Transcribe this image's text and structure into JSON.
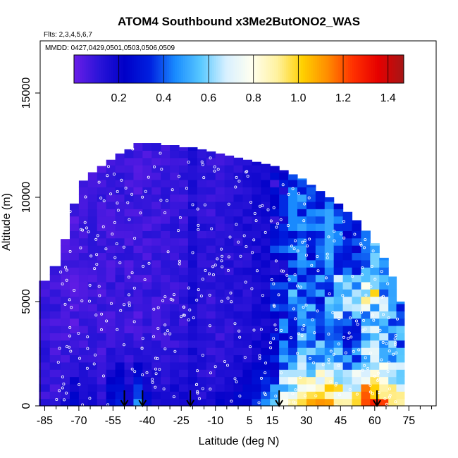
{
  "chart_data": {
    "type": "heatmap",
    "title": "ATOM4 Southbound x3Me2ButONO2_WAS",
    "subtitle_flights": "Flts: 2,3,4,5,6,7",
    "subtitle_dates": "MMDD: 0427,0429,0501,0503,0506,0509",
    "xlabel": "Latitude (deg N)",
    "ylabel": "Altitude (m)",
    "xlim": [
      -87,
      87
    ],
    "ylim": [
      0,
      17500
    ],
    "x_ticks": [
      -85,
      -70,
      -55,
      -40,
      -25,
      -10,
      5,
      15,
      30,
      45,
      60,
      75
    ],
    "x_tick_labels": [
      "-85",
      "-70",
      "-55",
      "-40",
      "-25",
      "-10",
      "5",
      "15",
      "30",
      "45",
      "60",
      "75"
    ],
    "y_ticks": [
      0,
      5000,
      10000,
      15000
    ],
    "y_tick_labels": [
      "0",
      "5000",
      "10000",
      "15000"
    ],
    "colorbar": {
      "range": [
        0.0,
        1.47
      ],
      "ticks": [
        0.2,
        0.4,
        0.6,
        0.8,
        1.0,
        1.2,
        1.4
      ],
      "tick_labels": [
        "0.2",
        "0.4",
        "0.6",
        "0.8",
        "1.0",
        "1.2",
        "1.4"
      ],
      "colors": [
        "#6a1ee8",
        "#2a14d8",
        "#0000c8",
        "#0020e0",
        "#1a8cff",
        "#58c8ff",
        "#d8f0ff",
        "#fffff0",
        "#fff2a0",
        "#ffd000",
        "#ff8c00",
        "#ff3000",
        "#e60000",
        "#a51616"
      ]
    },
    "sample_latitudes_arrows": [
      -50,
      -42,
      -21,
      18,
      61
    ],
    "surface_colors_note": "",
    "columns": [
      {
        "lat": -85.5,
        "top": 6000,
        "base": 0.1,
        "low": 0.1
      },
      {
        "lat": -80,
        "top": 6700,
        "base": 0.08,
        "low": 0.09
      },
      {
        "lat": -76,
        "top": 8000,
        "base": 0.07,
        "low": 0.15
      },
      {
        "lat": -72,
        "top": 9700,
        "base": 0.06,
        "low": 0.25
      },
      {
        "lat": -68,
        "top": 10800,
        "base": 0.07,
        "low": 0.2
      },
      {
        "lat": -64,
        "top": 11200,
        "base": 0.08,
        "low": 0.15
      },
      {
        "lat": -60,
        "top": 11500,
        "base": 0.08,
        "low": 0.12
      },
      {
        "lat": -56,
        "top": 11800,
        "base": 0.08,
        "low": 0.3
      },
      {
        "lat": -52,
        "top": 12100,
        "base": 0.09,
        "low": 0.35
      },
      {
        "lat": -48,
        "top": 12300,
        "base": 0.08,
        "low": 0.2
      },
      {
        "lat": -44,
        "top": 12600,
        "base": 0.07,
        "low": 0.45
      },
      {
        "lat": -40,
        "top": 12600,
        "base": 0.08,
        "low": 0.25
      },
      {
        "lat": -36,
        "top": 12600,
        "base": 0.09,
        "low": 0.18
      },
      {
        "lat": -32,
        "top": 12500,
        "base": 0.09,
        "low": 0.15
      },
      {
        "lat": -28,
        "top": 12500,
        "base": 0.1,
        "low": 0.18
      },
      {
        "lat": -24,
        "top": 12400,
        "base": 0.1,
        "low": 0.2
      },
      {
        "lat": -20,
        "top": 12400,
        "base": 0.15,
        "low": 0.18
      },
      {
        "lat": -16,
        "top": 12300,
        "base": 0.12,
        "low": 0.15
      },
      {
        "lat": -12,
        "top": 12200,
        "base": 0.1,
        "low": 0.15
      },
      {
        "lat": -8,
        "top": 12100,
        "base": 0.1,
        "low": 0.2
      },
      {
        "lat": -4,
        "top": 12000,
        "base": 0.12,
        "low": 0.2
      },
      {
        "lat": 0,
        "top": 11900,
        "base": 0.13,
        "low": 0.25
      },
      {
        "lat": 4,
        "top": 11800,
        "base": 0.14,
        "low": 0.25
      },
      {
        "lat": 8,
        "top": 11700,
        "base": 0.16,
        "low": 0.35
      },
      {
        "lat": 12,
        "top": 11600,
        "base": 0.18,
        "low": 0.45
      },
      {
        "lat": 16,
        "top": 11500,
        "base": 0.22,
        "low": 0.55
      },
      {
        "lat": 20,
        "top": 11300,
        "base": 0.3,
        "low": 0.7
      },
      {
        "lat": 24,
        "top": 11100,
        "base": 0.4,
        "low": 0.85
      },
      {
        "lat": 28,
        "top": 10900,
        "base": 0.45,
        "low": 0.95
      },
      {
        "lat": 32,
        "top": 10600,
        "base": 0.4,
        "low": 1.0
      },
      {
        "lat": 36,
        "top": 10300,
        "base": 0.42,
        "low": 1.05
      },
      {
        "lat": 40,
        "top": 10000,
        "base": 0.45,
        "low": 1.1
      },
      {
        "lat": 44,
        "top": 9700,
        "base": 0.4,
        "low": 1.0
      },
      {
        "lat": 48,
        "top": 9300,
        "base": 0.3,
        "low": 0.9
      },
      {
        "lat": 52,
        "top": 8900,
        "base": 0.35,
        "low": 0.95
      },
      {
        "lat": 56,
        "top": 8400,
        "base": 0.5,
        "low": 1.2
      },
      {
        "lat": 60,
        "top": 7800,
        "base": 0.55,
        "low": 1.3
      },
      {
        "lat": 64,
        "top": 7100,
        "base": 0.5,
        "low": 1.1
      },
      {
        "lat": 68,
        "top": 6200,
        "base": 0.45,
        "low": 0.95
      },
      {
        "lat": 71,
        "top": 5000,
        "base": 0.4,
        "low": 0.9
      }
    ]
  }
}
